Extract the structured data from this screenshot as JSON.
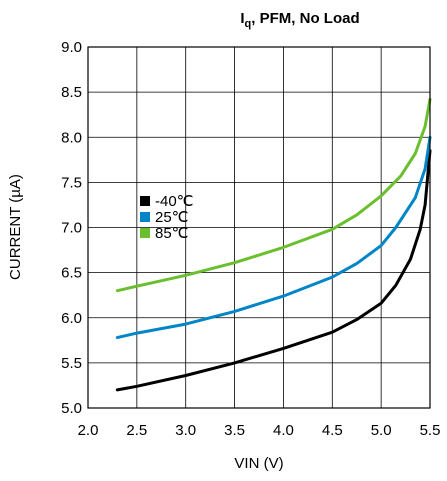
{
  "chart_data": {
    "type": "line",
    "title_main": "I",
    "title_sub": "q",
    "title_rest": ", PFM, No Load",
    "xlabel": "VIN (V)",
    "ylabel": "CURRENT (µA)",
    "xlim": [
      2.0,
      5.5
    ],
    "ylim": [
      5.0,
      9.0
    ],
    "xticks": [
      "2.0",
      "2.5",
      "3.0",
      "3.5",
      "4.0",
      "4.5",
      "5.0",
      "5.5"
    ],
    "yticks": [
      "5.0",
      "5.5",
      "6.0",
      "6.5",
      "7.0",
      "7.5",
      "8.0",
      "8.5",
      "9.0"
    ],
    "grid": true,
    "legend_position": "left-middle",
    "series": [
      {
        "name": "-40℃",
        "color": "#000000",
        "x": [
          2.3,
          2.5,
          3.0,
          3.5,
          4.0,
          4.5,
          4.75,
          5.0,
          5.15,
          5.3,
          5.4,
          5.45,
          5.5
        ],
        "y": [
          5.2,
          5.24,
          5.36,
          5.5,
          5.66,
          5.84,
          5.98,
          6.16,
          6.36,
          6.65,
          6.98,
          7.25,
          7.85
        ]
      },
      {
        "name": "25℃",
        "color": "#0085C8",
        "x": [
          2.3,
          2.5,
          3.0,
          3.5,
          4.0,
          4.5,
          4.75,
          5.0,
          5.15,
          5.35,
          5.45,
          5.5
        ],
        "y": [
          5.78,
          5.83,
          5.93,
          6.07,
          6.24,
          6.45,
          6.6,
          6.8,
          7.0,
          7.33,
          7.65,
          8.0
        ]
      },
      {
        "name": "85℃",
        "color": "#6ABF2E",
        "x": [
          2.3,
          2.5,
          3.0,
          3.5,
          4.0,
          4.5,
          4.75,
          5.0,
          5.2,
          5.35,
          5.45,
          5.5
        ],
        "y": [
          6.3,
          6.35,
          6.47,
          6.61,
          6.78,
          6.98,
          7.14,
          7.35,
          7.57,
          7.82,
          8.12,
          8.42
        ]
      }
    ]
  }
}
